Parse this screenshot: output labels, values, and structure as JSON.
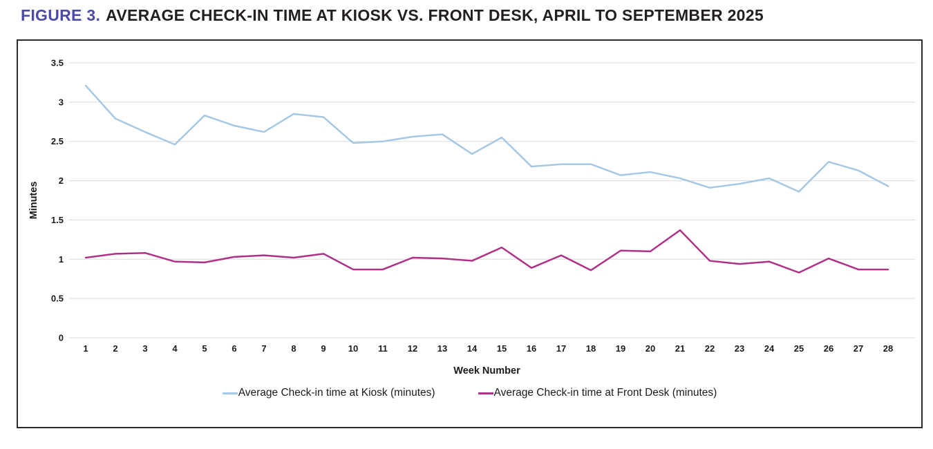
{
  "figure": {
    "label": "FIGURE 3.",
    "title": "AVERAGE CHECK-IN TIME AT KIOSK VS. FRONT DESK, APRIL TO SEPTEMBER 2025"
  },
  "chart_data": {
    "type": "line",
    "title": "Average check-in time at kiosk vs. front desk, April to September 2025",
    "xlabel": "Week Number",
    "ylabel": "Minutes",
    "x": [
      1,
      2,
      3,
      4,
      5,
      6,
      7,
      8,
      9,
      10,
      11,
      12,
      13,
      14,
      15,
      16,
      17,
      18,
      19,
      20,
      21,
      22,
      23,
      24,
      25,
      26,
      27,
      28
    ],
    "xtick_labels": [
      "1",
      "2",
      "3",
      "4",
      "5",
      "6",
      "7",
      "8",
      "9",
      "10",
      "11",
      "12",
      "13",
      "14",
      "15",
      "16",
      "17",
      "18",
      "19",
      "20",
      "21",
      "22",
      "23",
      "24",
      "25",
      "26",
      "27",
      "28"
    ],
    "ylim": [
      0,
      3.5
    ],
    "ytick_labels": [
      "0",
      "0.5",
      "1",
      "1.5",
      "2",
      "2.5",
      "3",
      "3.5"
    ],
    "grid": "horizontal",
    "legend_position": "bottom",
    "series": [
      {
        "name": "Average Check-in time at Kiosk (minutes)",
        "color": "#a5c8e4",
        "values": [
          3.21,
          2.79,
          2.62,
          2.46,
          2.83,
          2.7,
          2.62,
          2.85,
          2.81,
          2.48,
          2.5,
          2.56,
          2.59,
          2.34,
          2.55,
          2.18,
          2.21,
          2.21,
          2.07,
          2.11,
          2.03,
          1.91,
          1.96,
          2.03,
          1.86,
          2.24,
          2.13,
          1.93
        ]
      },
      {
        "name": "Average Check-in time at Front Desk (minutes)",
        "color": "#b03088",
        "values": [
          1.02,
          1.07,
          1.08,
          0.97,
          0.96,
          1.03,
          1.05,
          1.02,
          1.07,
          0.87,
          0.87,
          1.02,
          1.01,
          0.98,
          1.15,
          0.89,
          1.05,
          0.86,
          1.11,
          1.1,
          1.37,
          0.98,
          0.94,
          0.97,
          0.83,
          1.01,
          0.87,
          0.87
        ]
      }
    ]
  },
  "colors": {
    "figure_label": "#4c4aa8",
    "title_text": "#231f20",
    "gridline": "#dcdcdc",
    "axis_text": "#1a1a1a",
    "box_border": "#2b2b2b",
    "kiosk_line": "#a5c8e4",
    "front_desk_line": "#b03088"
  }
}
